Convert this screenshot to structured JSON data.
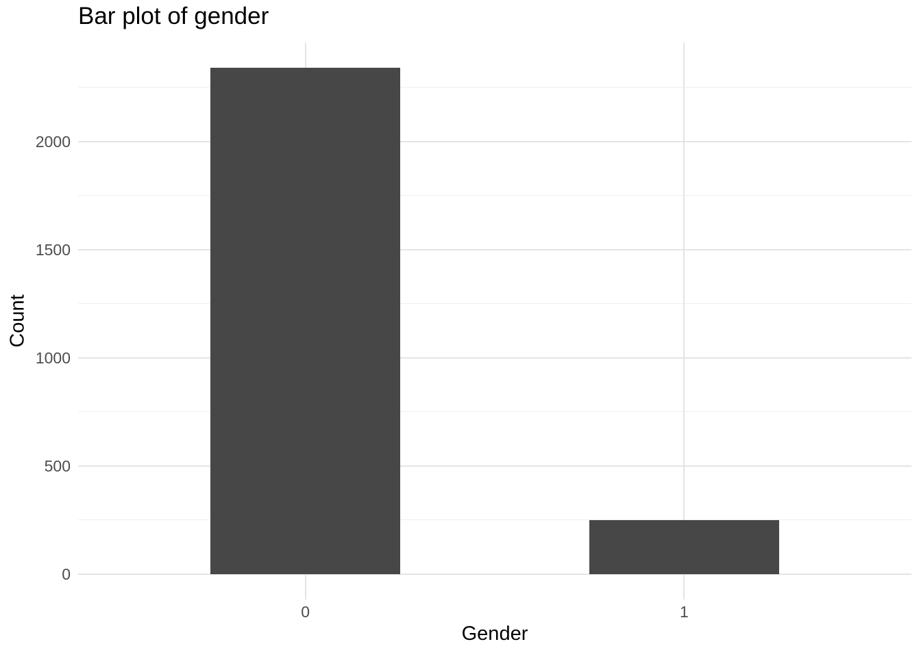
{
  "figure": {
    "title": "Bar plot of gender"
  },
  "chart_data": {
    "type": "bar",
    "title": "Bar plot of gender",
    "xlabel": "Gender",
    "ylabel": "Count",
    "categories": [
      "0",
      "1"
    ],
    "values": [
      2340,
      250
    ],
    "y_ticks": [
      0,
      500,
      1000,
      1500,
      2000
    ],
    "y_minor_ticks": [
      250,
      750,
      1250,
      1750,
      2250
    ],
    "ylim_display": [
      -117,
      2457
    ],
    "bar_width_units": 0.5,
    "grid": "horizontal major+minor, vertical major at category centers",
    "legend": "none",
    "colors": {
      "bar_fill": "#474747",
      "major_grid": "#e4e4e4",
      "minor_grid": "#efefef",
      "tick_text": "#4d4d4d",
      "title_text": "#000000",
      "axis_title_text": "#000000",
      "background": "#ffffff"
    }
  }
}
